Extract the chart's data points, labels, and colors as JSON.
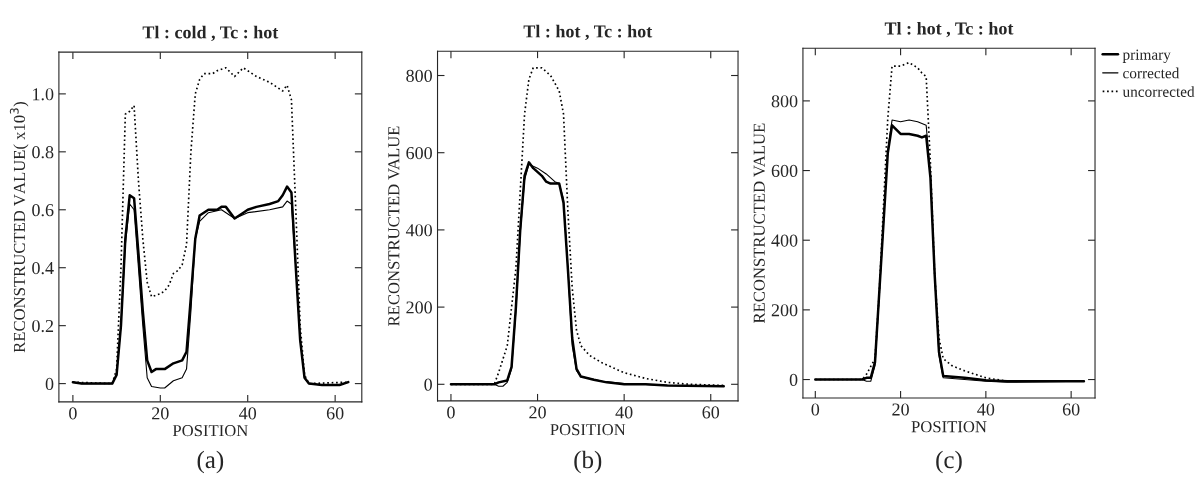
{
  "chart_data": [
    {
      "type": "line",
      "title": "Tl : cold , Tc : hot",
      "xlabel": "POSITION",
      "ylabel": "RECONSTRUCTED VALUE( x10$^{3}$)",
      "annotations": [
        "(a)"
      ],
      "xlim": [
        -3.2,
        66.1
      ],
      "ylim": [
        -0.063,
        1.144
      ],
      "xticks": [
        0,
        20,
        40,
        60
      ],
      "yticks": [
        {
          "value": 0,
          "label": "0"
        },
        0.2,
        0.4,
        0.6,
        0.8,
        {
          "value": 1.0,
          "label": "1.0"
        }
      ],
      "grid": false,
      "legend": false,
      "marker": "none",
      "series": [
        {
          "color": "#000000",
          "line_style": "solid",
          "x": [
            0,
            2,
            5,
            9,
            10,
            11,
            12,
            13,
            14,
            15,
            16,
            17,
            18,
            19,
            21,
            23,
            25,
            26,
            27,
            28,
            29,
            31,
            33,
            34,
            35,
            37,
            39,
            40,
            42,
            45,
            47,
            48,
            49,
            50,
            51,
            52,
            53,
            54,
            57,
            61,
            63
          ],
          "values": [
            0.005,
            0,
            0,
            0,
            0.03,
            0.2,
            0.5,
            0.65,
            0.64,
            0.45,
            0.25,
            0.08,
            0.04,
            0.05,
            0.05,
            0.07,
            0.08,
            0.11,
            0.3,
            0.5,
            0.58,
            0.6,
            0.6,
            0.61,
            0.61,
            0.57,
            0.59,
            0.6,
            0.61,
            0.62,
            0.63,
            0.65,
            0.68,
            0.66,
            0.4,
            0.15,
            0.02,
            0,
            -0.005,
            -0.005,
            0.005
          ]
        },
        {
          "color": "#000000",
          "line_style": "solid",
          "x": [
            0,
            2,
            5,
            9,
            10,
            11,
            12,
            13,
            14,
            15,
            16,
            17,
            18,
            20,
            21,
            23,
            25,
            26,
            27,
            28,
            29,
            31,
            34,
            37,
            40,
            45,
            48,
            49,
            50,
            51,
            52,
            53,
            54,
            57,
            61,
            63
          ],
          "values": [
            0.005,
            0,
            0,
            0,
            0.03,
            0.2,
            0.48,
            0.62,
            0.6,
            0.4,
            0.2,
            0.02,
            -0.01,
            -0.015,
            -0.015,
            0.01,
            0.02,
            0.05,
            0.25,
            0.5,
            0.56,
            0.59,
            0.6,
            0.57,
            0.59,
            0.6,
            0.61,
            0.63,
            0.62,
            0.4,
            0.15,
            0.02,
            0,
            -0.005,
            -0.005,
            0.005
          ]
        },
        {
          "color": "#000000",
          "line_style": "dotted",
          "x": [
            0,
            9,
            10,
            11,
            12,
            13,
            14,
            15,
            16,
            17,
            18,
            20,
            21,
            22,
            23,
            24,
            25,
            26,
            27,
            28,
            29,
            30,
            32,
            33,
            35,
            37,
            39,
            40,
            42,
            45,
            47,
            48,
            49,
            50,
            51,
            52,
            53,
            54,
            63
          ],
          "values": [
            0.005,
            0,
            0.05,
            0.4,
            0.93,
            0.94,
            0.96,
            0.7,
            0.5,
            0.35,
            0.3,
            0.31,
            0.32,
            0.34,
            0.38,
            0.39,
            0.41,
            0.48,
            0.8,
            1.0,
            1.05,
            1.07,
            1.07,
            1.08,
            1.09,
            1.06,
            1.09,
            1.08,
            1.06,
            1.04,
            1.02,
            1.01,
            1.03,
            0.98,
            0.6,
            0.2,
            0.03,
            0,
            0.005
          ]
        }
      ]
    },
    {
      "type": "line",
      "title": "Tl : hot , Tc : hot",
      "xlabel": "POSITION",
      "ylabel": "RECONSTRUCTED VALUE",
      "annotations": [
        "(b)"
      ],
      "xlim": [
        -3.1,
        66.3
      ],
      "ylim": [
        -43,
        863
      ],
      "xticks": [
        0,
        20,
        40,
        60
      ],
      "yticks": [
        0,
        200,
        400,
        600,
        800
      ],
      "grid": false,
      "legend": false,
      "marker": "none",
      "series": [
        {
          "color": "#000000",
          "line_style": "solid",
          "x": [
            0,
            10,
            11,
            13,
            14,
            15,
            16,
            17,
            18,
            19,
            21,
            22,
            23,
            25,
            26,
            27,
            28,
            29,
            30,
            33,
            36,
            40,
            45,
            50,
            63
          ],
          "values": [
            0,
            0,
            5,
            10,
            45,
            200,
            400,
            540,
            575,
            560,
            540,
            525,
            520,
            520,
            470,
            300,
            120,
            40,
            20,
            12,
            5,
            0,
            0,
            -3,
            -5
          ]
        },
        {
          "color": "#000000",
          "line_style": "solid",
          "x": [
            0,
            10,
            11,
            12,
            13,
            14,
            15,
            16,
            17,
            18,
            20,
            22,
            24,
            25,
            26,
            27,
            28,
            29,
            30,
            35,
            40,
            50,
            63
          ],
          "values": [
            0,
            0,
            -5,
            -5,
            5,
            40,
            190,
            390,
            530,
            570,
            560,
            545,
            525,
            520,
            480,
            300,
            100,
            35,
            20,
            8,
            2,
            -3,
            -5
          ]
        },
        {
          "color": "#000000",
          "line_style": "dotted",
          "x": [
            0,
            10,
            11,
            13,
            15,
            16,
            17,
            18,
            19,
            21,
            23,
            25,
            26,
            27,
            28,
            29,
            30,
            32,
            35,
            40,
            45,
            50,
            55,
            63
          ],
          "values": [
            0,
            0,
            30,
            100,
            300,
            500,
            700,
            790,
            820,
            820,
            800,
            760,
            700,
            450,
            250,
            140,
            100,
            75,
            55,
            30,
            15,
            5,
            0,
            -3
          ]
        }
      ]
    },
    {
      "type": "line",
      "title": "Tl : hot , Tc : hot",
      "xlabel": "POSITION",
      "ylabel": "RECONSTRUCTED VALUE",
      "annotations": [
        "(c)"
      ],
      "xlim": [
        -2.9,
        65.6
      ],
      "ylim": [
        -53,
        951
      ],
      "xticks": [
        0,
        20,
        40,
        60
      ],
      "yticks": [
        0,
        200,
        400,
        600,
        800
      ],
      "grid": false,
      "legend": "right",
      "marker": "none",
      "series": [
        {
          "name": "primary",
          "color": "#000000",
          "line_style": "solid",
          "x": [
            0,
            11,
            12,
            13,
            14,
            15,
            16,
            17,
            18,
            20,
            22,
            24,
            25,
            26,
            27,
            28,
            29,
            30,
            35,
            40,
            45,
            63
          ],
          "values": [
            0,
            0,
            5,
            5,
            50,
            250,
            450,
            650,
            730,
            705,
            705,
            700,
            695,
            700,
            580,
            300,
            80,
            10,
            5,
            -2,
            -5,
            -5
          ]
        },
        {
          "name": "corrected",
          "color": "#000000",
          "line_style": "solid",
          "x": [
            0,
            11,
            12,
            13,
            14,
            15,
            16,
            17,
            18,
            20,
            22,
            24,
            25,
            26,
            27,
            28,
            29,
            30,
            35,
            40,
            45,
            63
          ],
          "values": [
            0,
            0,
            -5,
            -5,
            40,
            240,
            450,
            660,
            745,
            740,
            745,
            740,
            735,
            730,
            590,
            300,
            70,
            5,
            0,
            -5,
            -8,
            -5
          ]
        },
        {
          "name": "uncorrected",
          "color": "#000000",
          "line_style": "dotted",
          "x": [
            0,
            11,
            12,
            14,
            15,
            16,
            17,
            18,
            20,
            22,
            24,
            25,
            26,
            27,
            28,
            29,
            30,
            32,
            35,
            40,
            45,
            63
          ],
          "values": [
            0,
            0,
            15,
            60,
            250,
            500,
            750,
            900,
            900,
            910,
            895,
            880,
            870,
            620,
            300,
            120,
            60,
            40,
            25,
            5,
            -5,
            -5
          ]
        }
      ]
    }
  ]
}
